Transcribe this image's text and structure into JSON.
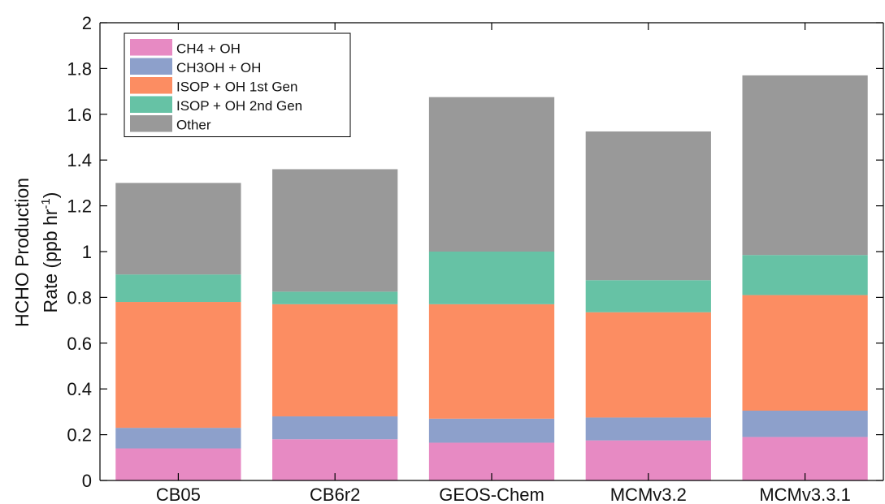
{
  "chart_data": {
    "type": "bar",
    "stacked": true,
    "categories": [
      "CB05",
      "CB6r2",
      "GEOS-Chem",
      "MCMv3.2",
      "MCMv3.3.1"
    ],
    "series": [
      {
        "name": "CH4 + OH",
        "color": "#e78ac3",
        "values": [
          0.14,
          0.18,
          0.165,
          0.175,
          0.19
        ]
      },
      {
        "name": "CH3OH + OH",
        "color": "#8da0cb",
        "values": [
          0.09,
          0.1,
          0.105,
          0.1,
          0.115
        ]
      },
      {
        "name": "ISOP + OH 1st Gen",
        "color": "#fc8d62",
        "values": [
          0.55,
          0.49,
          0.5,
          0.46,
          0.505
        ]
      },
      {
        "name": "ISOP + OH 2nd Gen",
        "color": "#66c2a5",
        "values": [
          0.12,
          0.055,
          0.23,
          0.14,
          0.175
        ]
      },
      {
        "name": "Other",
        "color": "#999999",
        "values": [
          0.4,
          0.535,
          0.675,
          0.65,
          0.785
        ]
      }
    ],
    "ylabel_line1": "HCHO Production",
    "ylabel_line2": "Rate (ppb hr",
    "ylabel_sup": "-1",
    "ylabel_close": ")",
    "ylim": [
      0,
      2
    ],
    "yticks": [
      0,
      0.2,
      0.4,
      0.6,
      0.8,
      1,
      1.2,
      1.4,
      1.6,
      1.8,
      2
    ],
    "ytick_labels": [
      "0",
      "0.2",
      "0.4",
      "0.6",
      "0.8",
      "1",
      "1.2",
      "1.4",
      "1.6",
      "1.8",
      "2"
    ],
    "legend_position": "top-left",
    "grid": false
  }
}
